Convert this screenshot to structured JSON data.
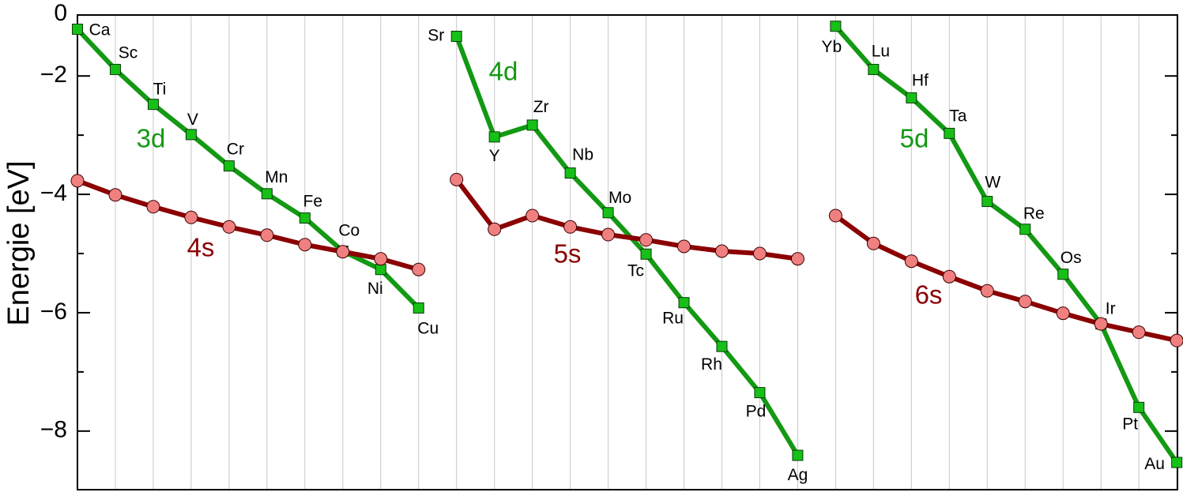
{
  "chart_data": {
    "type": "line",
    "y_label": "Energie [eV]",
    "y_top_label": "0",
    "ylim": [
      -8.99,
      -0.97
    ],
    "yticks": [
      {
        "value": -2,
        "label": "−2"
      },
      {
        "value": -4,
        "label": "−4"
      },
      {
        "value": -6,
        "label": "−6"
      },
      {
        "value": -8,
        "label": "−8"
      }
    ],
    "yminor": [
      -3,
      -5,
      -7
    ],
    "grid": true,
    "categories": [
      "Ca",
      "Sc",
      "Ti",
      "V",
      "Cr",
      "Mn",
      "Fe",
      "Co",
      "Ni",
      "Cu",
      "Sr",
      "Y",
      "Zr",
      "Nb",
      "Mo",
      "Tc",
      "Ru",
      "Rh",
      "Pd",
      "Ag",
      "Yb",
      "Lu",
      "Hf",
      "Ta",
      "W",
      "Re",
      "Os",
      "Ir",
      "Pt",
      "Au"
    ],
    "series": [
      {
        "name": "3d",
        "color": "#139913",
        "marker": "square",
        "values": [
          -1.21,
          -1.89,
          -2.48,
          -2.99,
          -3.52,
          -3.99,
          -4.4,
          -4.96,
          -5.27,
          -5.92,
          null,
          null,
          null,
          null,
          null,
          null,
          null,
          null,
          null,
          null,
          null,
          null,
          null,
          null,
          null,
          null,
          null,
          null,
          null,
          null
        ]
      },
      {
        "name": "4d",
        "color": "#139913",
        "marker": "square",
        "values": [
          null,
          null,
          null,
          null,
          null,
          null,
          null,
          null,
          null,
          null,
          -1.33,
          -3.03,
          -2.83,
          -3.64,
          -4.31,
          -5.01,
          -5.83,
          -6.57,
          -7.35,
          -8.41,
          null,
          null,
          null,
          null,
          null,
          null,
          null,
          null,
          null,
          null
        ]
      },
      {
        "name": "5d",
        "color": "#139913",
        "marker": "square",
        "values": [
          null,
          null,
          null,
          null,
          null,
          null,
          null,
          null,
          null,
          null,
          null,
          null,
          null,
          null,
          null,
          null,
          null,
          null,
          null,
          null,
          -1.16,
          -1.89,
          -2.37,
          -2.97,
          -4.12,
          -4.59,
          -5.35,
          -6.19,
          -7.6,
          -8.53
        ]
      },
      {
        "name": "4s",
        "color": "#8b0000",
        "marker": "circle",
        "values": [
          -3.77,
          -4.01,
          -4.21,
          -4.39,
          -4.55,
          -4.69,
          -4.85,
          -4.97,
          -5.09,
          -5.27,
          null,
          null,
          null,
          null,
          null,
          null,
          null,
          null,
          null,
          null,
          null,
          null,
          null,
          null,
          null,
          null,
          null,
          null,
          null,
          null
        ]
      },
      {
        "name": "5s",
        "color": "#8b0000",
        "marker": "circle",
        "values": [
          null,
          null,
          null,
          null,
          null,
          null,
          null,
          null,
          null,
          null,
          -3.75,
          -4.59,
          -4.36,
          -4.55,
          -4.68,
          -4.77,
          -4.88,
          -4.96,
          -5.0,
          -5.09,
          null,
          null,
          null,
          null,
          null,
          null,
          null,
          null,
          null,
          null
        ]
      },
      {
        "name": "6s",
        "color": "#8b0000",
        "marker": "circle",
        "values": [
          null,
          null,
          null,
          null,
          null,
          null,
          null,
          null,
          null,
          null,
          null,
          null,
          null,
          null,
          null,
          null,
          null,
          null,
          null,
          null,
          -4.36,
          -4.83,
          -5.13,
          -5.39,
          -5.63,
          -5.81,
          -6.01,
          -6.19,
          -6.33,
          -6.47
        ]
      }
    ]
  }
}
